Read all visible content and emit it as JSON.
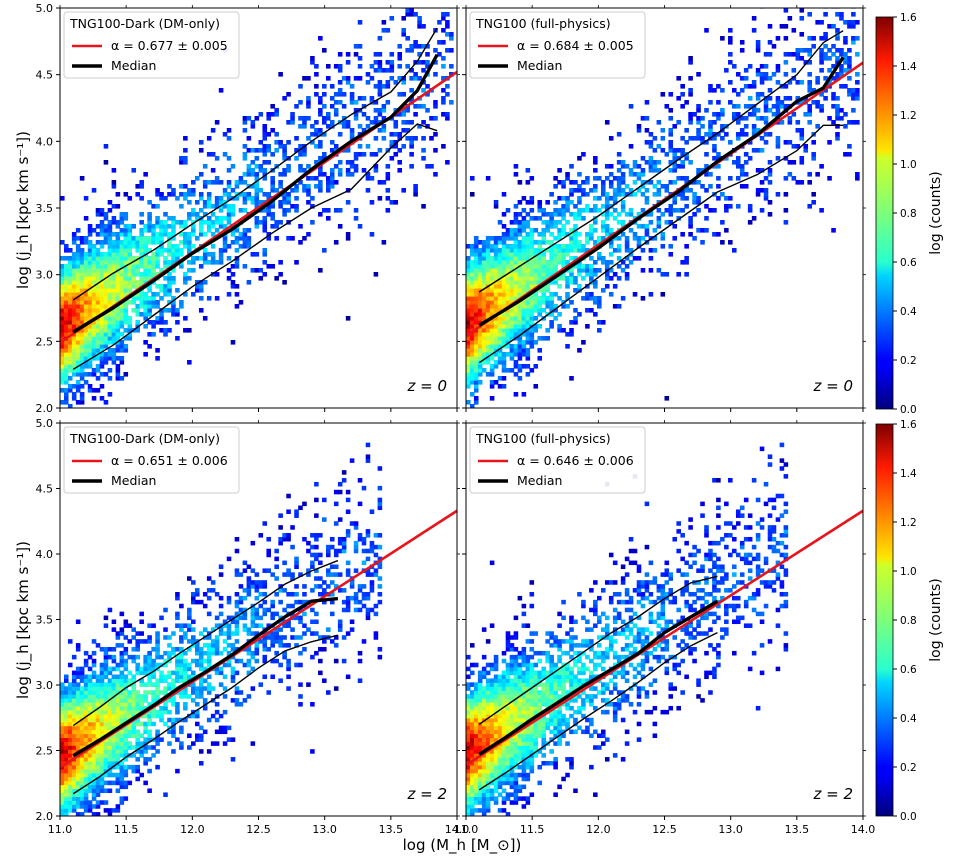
{
  "figure": {
    "xlabel": "log (M_h [M_⊙])",
    "ylabel": "log (j_h [kpc km s⁻¹])",
    "colorbar_label": "log (counts)",
    "colorbar_ticks": [
      "0.0",
      "0.2",
      "0.4",
      "0.6",
      "0.8",
      "1.0",
      "1.2",
      "1.4",
      "1.6"
    ],
    "colorbar_range": [
      0,
      1.6
    ],
    "colormap": "jet",
    "x_ticks": [
      "11.0",
      "11.5",
      "12.0",
      "12.5",
      "13.0",
      "13.5",
      "14.0"
    ],
    "y_ticks": [
      "2.0",
      "2.5",
      "3.0",
      "3.5",
      "4.0",
      "4.5",
      "5.0"
    ],
    "fit_color": "#e8141b",
    "median_color": "#000000"
  },
  "chart_data": [
    {
      "type": "heatmap",
      "legend_title": "TNG100-Dark (DM-only)",
      "fit_label": "α = 0.677 ± 0.005",
      "median_label": "Median",
      "redshift_label": "z = 0",
      "xlim": [
        11.0,
        14.0
      ],
      "ylim": [
        2.0,
        5.0
      ],
      "alpha": 0.677,
      "fit_line": {
        "x": [
          11.0,
          14.0
        ],
        "y": [
          2.49,
          4.52
        ]
      },
      "density": {
        "x_center": 11.0,
        "y_center": 2.6,
        "x_max_extent": 13.95,
        "relation_slope": 0.677
      },
      "median": {
        "x": [
          11.1,
          11.4,
          11.7,
          12.0,
          12.3,
          12.6,
          12.9,
          13.2,
          13.5,
          13.7,
          13.85
        ],
        "y": [
          2.57,
          2.75,
          2.95,
          3.16,
          3.34,
          3.55,
          3.79,
          4.0,
          4.18,
          4.38,
          4.65
        ]
      },
      "percentile_16": {
        "x": [
          11.1,
          11.4,
          11.7,
          12.0,
          12.3,
          12.6,
          12.9,
          13.2,
          13.5,
          13.7,
          13.85
        ],
        "y": [
          2.29,
          2.47,
          2.69,
          2.91,
          3.1,
          3.31,
          3.5,
          3.64,
          3.95,
          4.13,
          4.08
        ]
      },
      "percentile_84": {
        "x": [
          11.1,
          11.4,
          11.7,
          12.0,
          12.3,
          12.6,
          12.9,
          13.2,
          13.5,
          13.7,
          13.85
        ],
        "y": [
          2.81,
          3.01,
          3.18,
          3.38,
          3.57,
          3.78,
          4.0,
          4.2,
          4.37,
          4.6,
          4.85
        ]
      }
    },
    {
      "type": "heatmap",
      "legend_title": "TNG100 (full-physics)",
      "fit_label": "α = 0.684 ± 0.005",
      "median_label": "Median",
      "redshift_label": "z = 0",
      "xlim": [
        11.0,
        14.0
      ],
      "ylim": [
        2.0,
        5.0
      ],
      "alpha": 0.684,
      "fit_line": {
        "x": [
          11.0,
          14.0
        ],
        "y": [
          2.54,
          4.59
        ]
      },
      "density": {
        "x_center": 11.0,
        "y_center": 2.62,
        "x_max_extent": 13.95,
        "relation_slope": 0.684
      },
      "median": {
        "x": [
          11.1,
          11.4,
          11.7,
          12.0,
          12.3,
          12.6,
          12.9,
          13.2,
          13.5,
          13.7,
          13.85
        ],
        "y": [
          2.62,
          2.8,
          3.0,
          3.2,
          3.42,
          3.62,
          3.85,
          4.05,
          4.3,
          4.4,
          4.63
        ]
      },
      "percentile_16": {
        "x": [
          11.1,
          11.4,
          11.7,
          12.0,
          12.3,
          12.6,
          12.9,
          13.2,
          13.5,
          13.7,
          13.85
        ],
        "y": [
          2.34,
          2.54,
          2.76,
          2.98,
          3.2,
          3.41,
          3.62,
          3.75,
          3.93,
          4.12,
          4.12
        ]
      },
      "percentile_84": {
        "x": [
          11.1,
          11.4,
          11.7,
          12.0,
          12.3,
          12.6,
          12.9,
          13.2,
          13.5,
          13.7,
          13.85
        ],
        "y": [
          2.87,
          3.06,
          3.25,
          3.44,
          3.65,
          3.86,
          4.06,
          4.28,
          4.5,
          4.74,
          4.83
        ]
      }
    },
    {
      "type": "heatmap",
      "legend_title": "TNG100-Dark (DM-only)",
      "fit_label": "α = 0.651 ± 0.006",
      "median_label": "Median",
      "redshift_label": "z = 2",
      "xlim": [
        11.0,
        14.0
      ],
      "ylim": [
        2.0,
        5.0
      ],
      "alpha": 0.651,
      "fit_line": {
        "x": [
          11.0,
          14.0
        ],
        "y": [
          2.37,
          4.33
        ]
      },
      "density": {
        "x_center": 11.0,
        "y_center": 2.45,
        "x_max_extent": 13.4,
        "relation_slope": 0.651
      },
      "median": {
        "x": [
          11.1,
          11.3,
          11.5,
          11.7,
          11.9,
          12.1,
          12.3,
          12.5,
          12.7,
          12.9,
          13.1
        ],
        "y": [
          2.46,
          2.58,
          2.71,
          2.84,
          2.98,
          3.1,
          3.23,
          3.38,
          3.52,
          3.64,
          3.66
        ]
      },
      "percentile_16": {
        "x": [
          11.1,
          11.3,
          11.5,
          11.7,
          11.9,
          12.1,
          12.3,
          12.5,
          12.7,
          12.9,
          13.1
        ],
        "y": [
          2.17,
          2.3,
          2.45,
          2.58,
          2.72,
          2.85,
          2.98,
          3.13,
          3.26,
          3.33,
          3.38
        ]
      },
      "percentile_84": {
        "x": [
          11.1,
          11.3,
          11.5,
          11.7,
          11.9,
          12.1,
          12.3,
          12.5,
          12.7,
          12.9,
          13.1
        ],
        "y": [
          2.69,
          2.83,
          2.98,
          3.1,
          3.24,
          3.37,
          3.5,
          3.63,
          3.77,
          3.87,
          3.95
        ]
      }
    },
    {
      "type": "heatmap",
      "legend_title": "TNG100 (full-physics)",
      "fit_label": "α = 0.646 ± 0.006",
      "median_label": "Median",
      "redshift_label": "z = 2",
      "xlim": [
        11.0,
        14.0
      ],
      "ylim": [
        2.0,
        5.0
      ],
      "alpha": 0.646,
      "fit_line": {
        "x": [
          11.0,
          14.0
        ],
        "y": [
          2.39,
          4.33
        ]
      },
      "density": {
        "x_center": 11.0,
        "y_center": 2.48,
        "x_max_extent": 13.4,
        "relation_slope": 0.646
      },
      "median": {
        "x": [
          11.1,
          11.3,
          11.5,
          11.7,
          11.9,
          12.1,
          12.3,
          12.5,
          12.7,
          12.9
        ],
        "y": [
          2.47,
          2.6,
          2.74,
          2.87,
          3.0,
          3.12,
          3.24,
          3.4,
          3.52,
          3.64
        ]
      },
      "percentile_16": {
        "x": [
          11.1,
          11.3,
          11.5,
          11.7,
          11.9,
          12.1,
          12.3,
          12.5,
          12.7,
          12.9
        ],
        "y": [
          2.2,
          2.33,
          2.47,
          2.61,
          2.75,
          2.88,
          3.02,
          3.17,
          3.3,
          3.4
        ]
      },
      "percentile_84": {
        "x": [
          11.1,
          11.3,
          11.5,
          11.7,
          11.9,
          12.1,
          12.3,
          12.5,
          12.7,
          12.9
        ],
        "y": [
          2.7,
          2.84,
          2.98,
          3.12,
          3.26,
          3.4,
          3.52,
          3.66,
          3.78,
          3.83
        ]
      }
    }
  ]
}
